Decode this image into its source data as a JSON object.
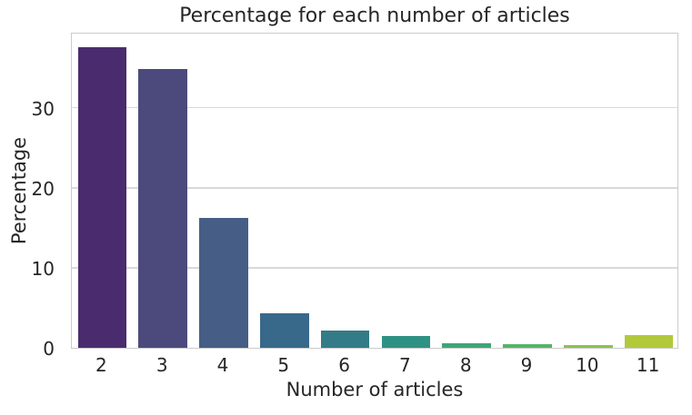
{
  "chart_data": {
    "type": "bar",
    "title": "Percentage for each number of articles",
    "xlabel": "Number of articles",
    "ylabel": "Percentage",
    "categories": [
      "2",
      "3",
      "4",
      "5",
      "6",
      "7",
      "8",
      "9",
      "10",
      "11"
    ],
    "values": [
      37.6,
      34.9,
      16.2,
      4.3,
      2.2,
      1.5,
      0.6,
      0.4,
      0.3,
      1.6
    ],
    "yticks": [
      0,
      10,
      20,
      30
    ],
    "ylim": [
      0,
      39.5
    ],
    "grid": "horizontal",
    "legend": "none",
    "palette_name": "viridis",
    "bar_colors": [
      "#4a2c6e",
      "#4c4a7c",
      "#465e86",
      "#38698a",
      "#337b87",
      "#2f9184",
      "#3da577",
      "#55b567",
      "#8ac350",
      "#b2c93b"
    ],
    "bar_width_fraction": 0.8
  },
  "colors": {
    "background": "#ffffff",
    "text": "#262626",
    "grid": "#d9d9d9",
    "spine": "#cbcbcb"
  }
}
